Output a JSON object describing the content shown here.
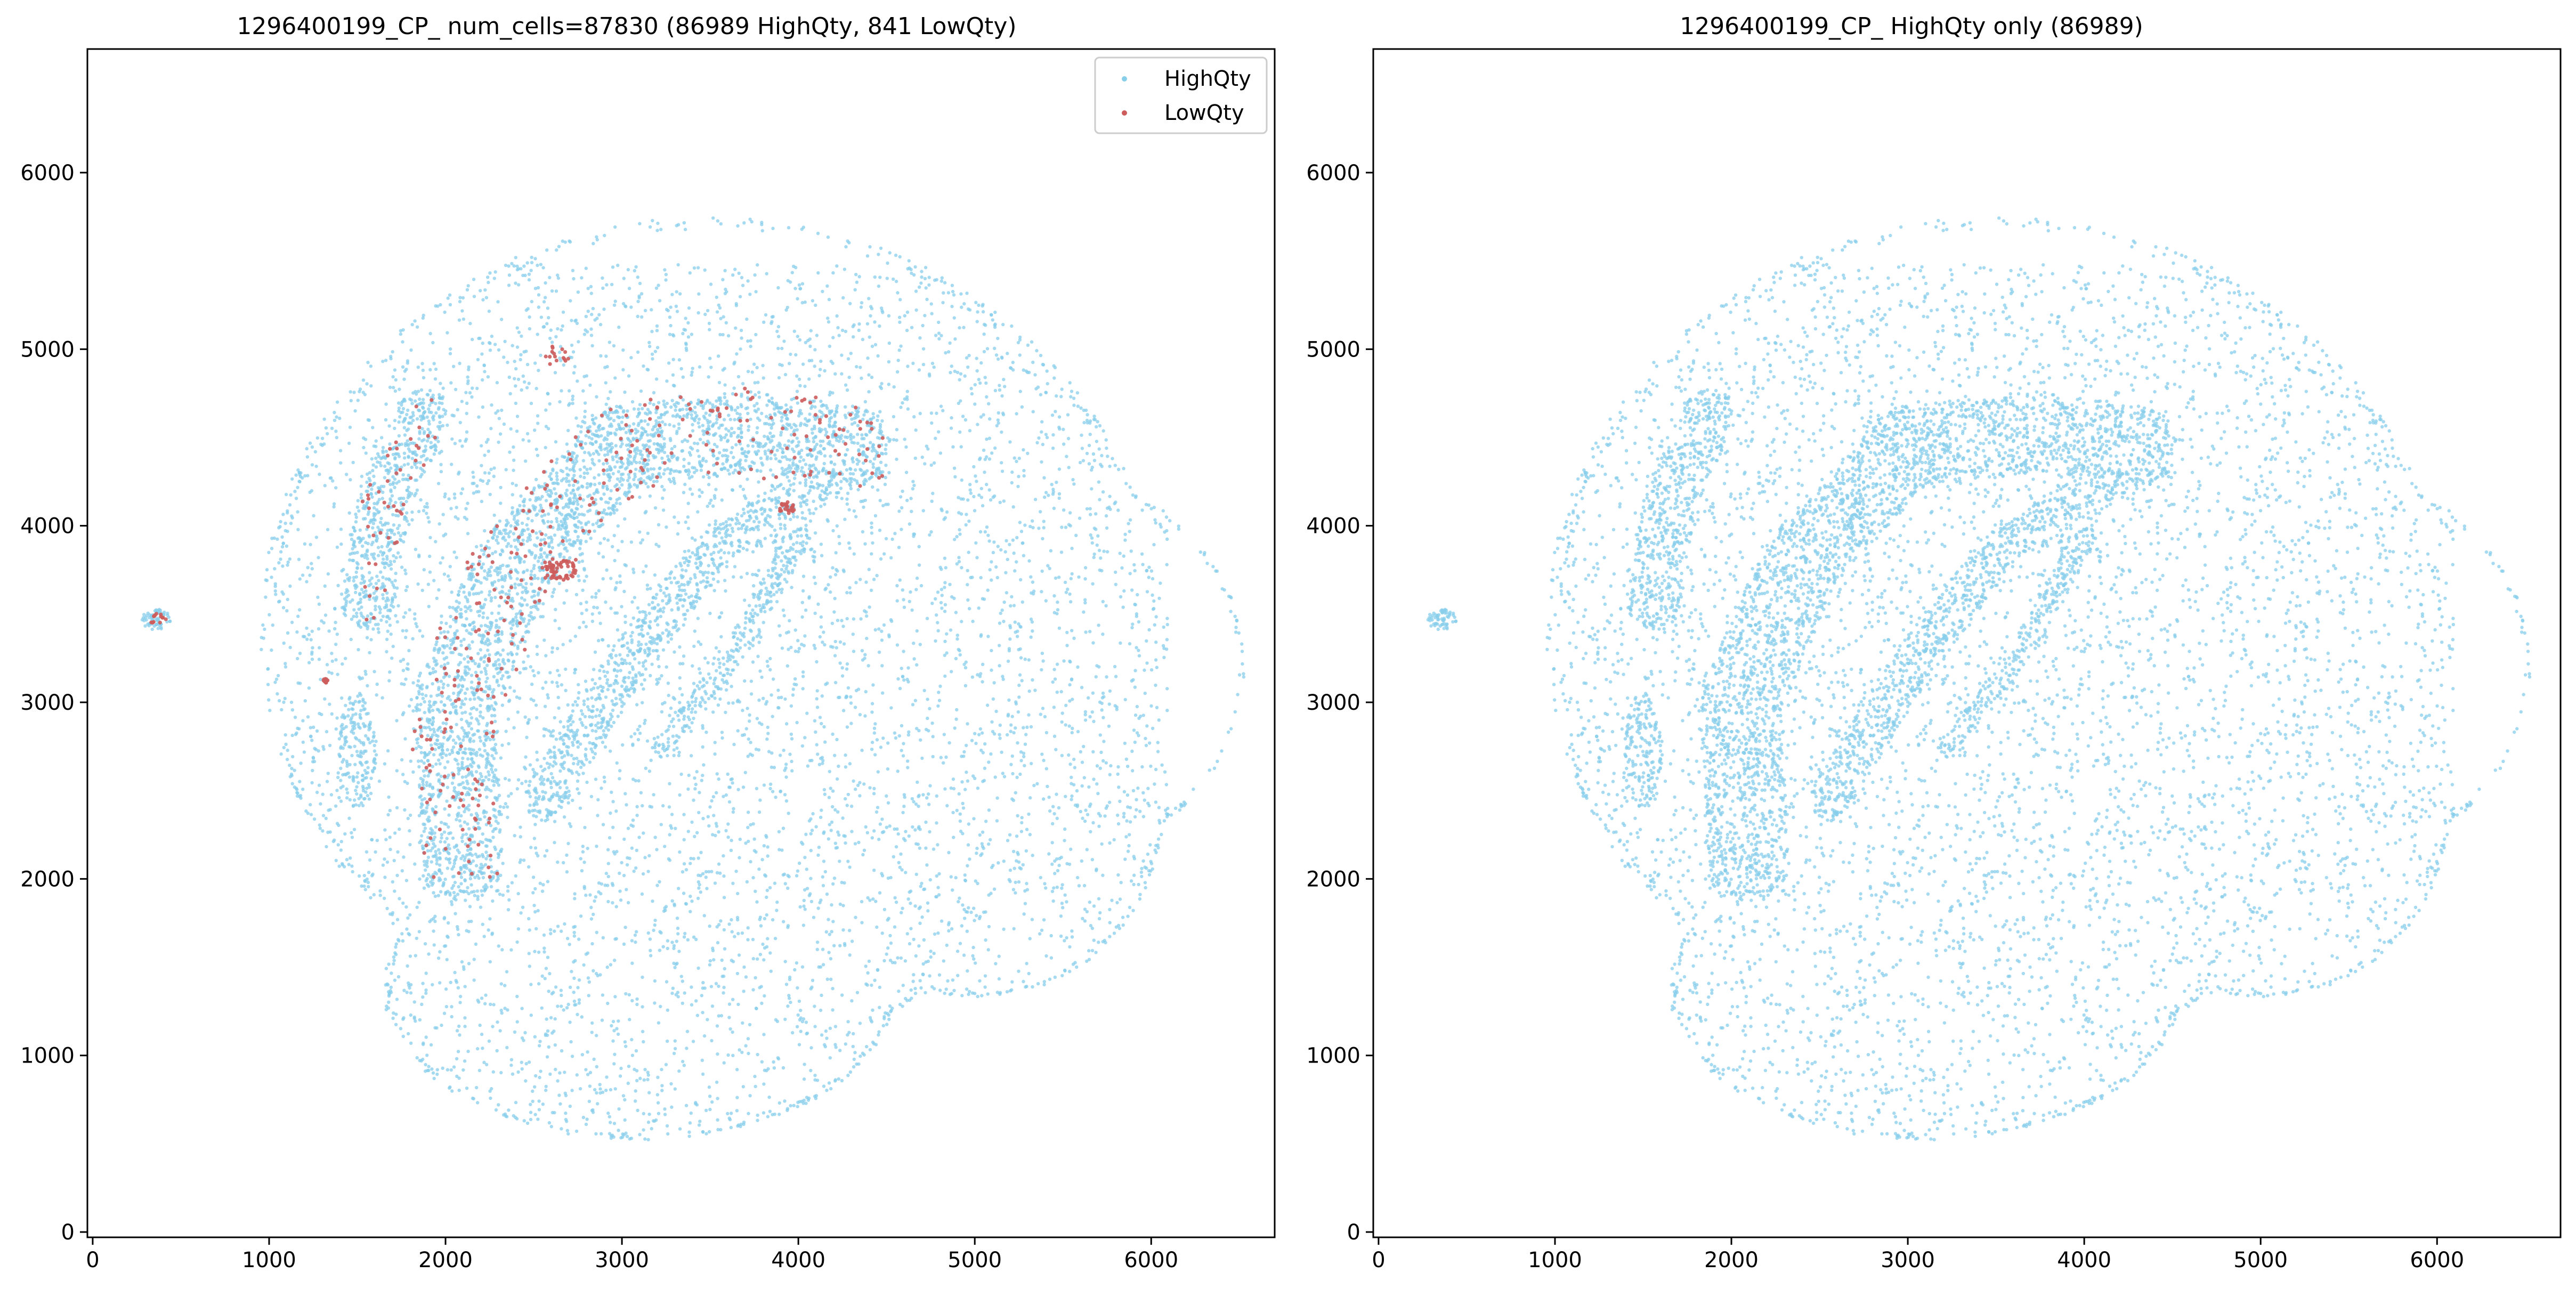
{
  "colors": {
    "highqty": "#87CEEB",
    "lowqty": "#CD5C5C"
  },
  "chart_data": [
    {
      "type": "scatter",
      "title": "1296400199_CP_ num_cells=87830 (86989 HighQty, 841 LowQty)",
      "xlabel": "",
      "ylabel": "",
      "xlim": [
        -30,
        6700
      ],
      "ylim": [
        -30,
        6700
      ],
      "x_ticks": [
        0,
        1000,
        2000,
        3000,
        4000,
        5000,
        6000
      ],
      "y_ticks": [
        0,
        1000,
        2000,
        3000,
        4000,
        5000,
        6000
      ],
      "grid": false,
      "legend": {
        "position": "top-right",
        "entries": [
          "HighQty",
          "LowQty"
        ]
      },
      "series": [
        {
          "name": "HighQty",
          "count": 86989
        },
        {
          "name": "LowQty",
          "count": 841
        }
      ]
    },
    {
      "type": "scatter",
      "title": "1296400199_CP_ HighQty only (86989)",
      "xlabel": "",
      "ylabel": "",
      "xlim": [
        -30,
        6700
      ],
      "ylim": [
        -30,
        6700
      ],
      "x_ticks": [
        0,
        1000,
        2000,
        3000,
        4000,
        5000,
        6000
      ],
      "y_ticks": [
        0,
        1000,
        2000,
        3000,
        4000,
        5000,
        6000
      ],
      "grid": false,
      "series": [
        {
          "name": "HighQty",
          "count": 86989
        }
      ]
    }
  ]
}
